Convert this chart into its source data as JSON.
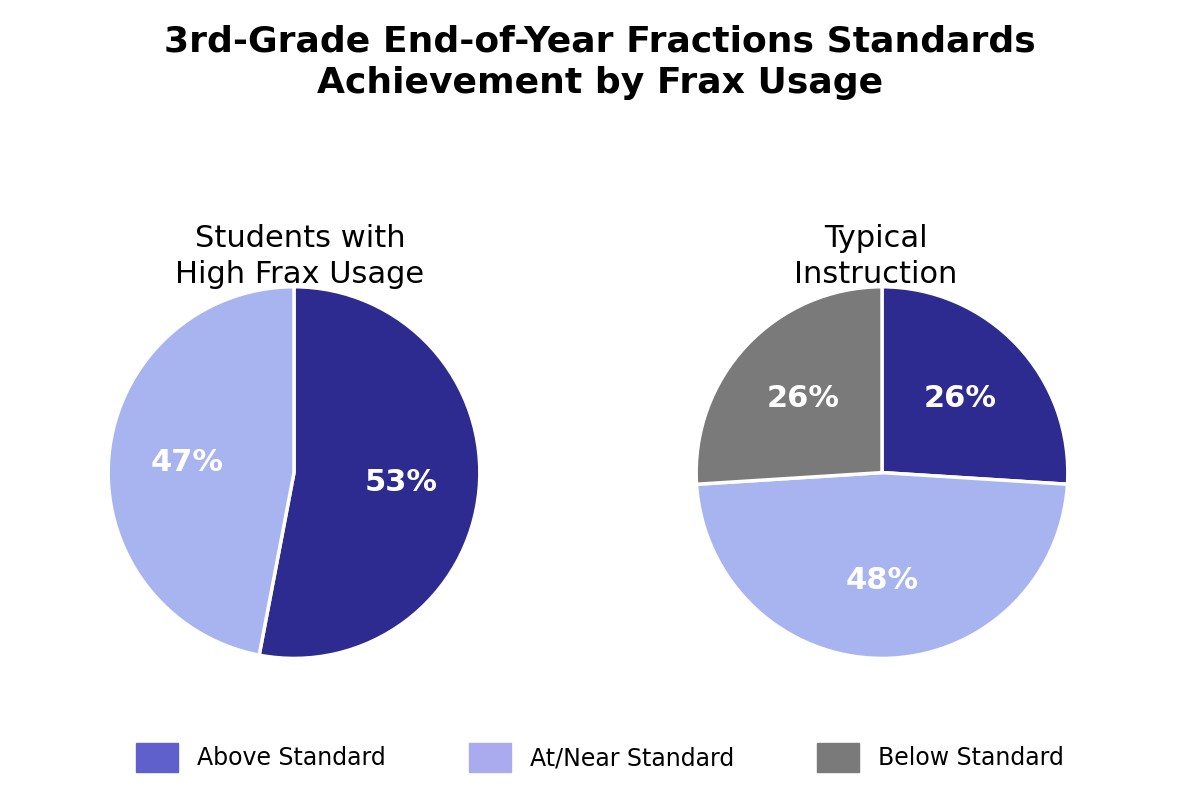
{
  "title": "3rd-Grade End-of-Year Fractions Standards\nAchievement by Frax Usage",
  "title_fontsize": 26,
  "title_fontweight": "bold",
  "background_color": "#ffffff",
  "pie1": {
    "label": "Students with\nHigh Frax Usage",
    "values": [
      53,
      47
    ],
    "colors": [
      "#2d2b8f",
      "#a8b4f0"
    ],
    "text_labels": [
      "53%",
      "47%"
    ],
    "startangle": 90
  },
  "pie2": {
    "label": "Typical\nInstruction",
    "values": [
      26,
      48,
      26
    ],
    "colors": [
      "#2d2b8f",
      "#a8b4f0",
      "#7a7a7a"
    ],
    "text_labels": [
      "26%",
      "48%",
      "26%"
    ],
    "startangle": 90
  },
  "legend": {
    "labels": [
      "Above Standard",
      "At/Near Standard",
      "Below Standard"
    ],
    "colors": [
      "#6060cc",
      "#aaaaee",
      "#7a7a7a"
    ]
  },
  "subtitle_fontsize": 22,
  "pct_fontsize": 22,
  "pct_color": "white",
  "pct_fontweight": "bold"
}
